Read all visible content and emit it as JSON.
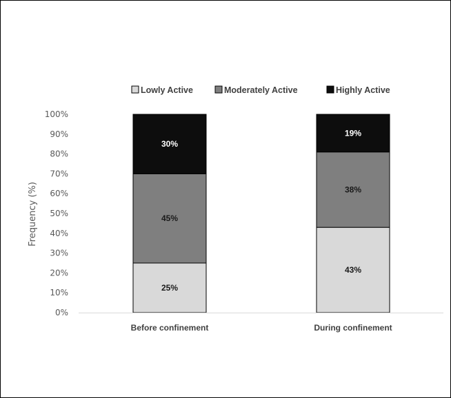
{
  "chart_data": {
    "type": "bar",
    "stacked": true,
    "categories": [
      "Before confinement",
      "During confinement"
    ],
    "series": [
      {
        "name": "Lowly Active",
        "values": [
          25,
          43
        ],
        "labels": [
          "25%",
          "43%"
        ],
        "color": "#d9d9d9",
        "label_color": "#1a1a1a"
      },
      {
        "name": "Moderately Active",
        "values": [
          45,
          38
        ],
        "labels": [
          "45%",
          "38%"
        ],
        "color": "#7f7f7f",
        "label_color": "#1a1a1a"
      },
      {
        "name": "Highly Active",
        "values": [
          30,
          19
        ],
        "labels": [
          "30%",
          "19%"
        ],
        "color": "#0d0d0d",
        "label_color": "#ffffff"
      }
    ],
    "title": "",
    "xlabel": "",
    "ylabel": "Frequency (%)",
    "ylim": [
      0,
      100
    ],
    "yticks": [
      0,
      10,
      20,
      30,
      40,
      50,
      60,
      70,
      80,
      90,
      100
    ],
    "ytick_labels": [
      "0%",
      "10%",
      "20%",
      "30%",
      "40%",
      "50%",
      "60%",
      "70%",
      "80%",
      "90%",
      "100%"
    ],
    "grid": false,
    "legend_position": "top"
  }
}
